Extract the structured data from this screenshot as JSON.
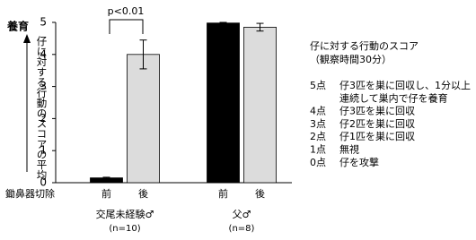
{
  "chart_data": {
    "type": "bar",
    "y_label_top": "養育",
    "y_label": "仔に対する行動のスコアの平均",
    "x_row_label": "鋤鼻器切除",
    "categories": [
      "交尾未経験♂",
      "父♂"
    ],
    "category_notes": [
      "(n=10)",
      "(n=8)"
    ],
    "series": [
      {
        "name": "前",
        "color": "#000000",
        "values": [
          0.15,
          4.98
        ],
        "errors": [
          0.02,
          0.02
        ]
      },
      {
        "name": "後",
        "color": "#dcdcdc",
        "values": [
          4.0,
          4.85
        ],
        "errors": [
          0.45,
          0.12
        ]
      }
    ],
    "ylim": [
      0,
      5
    ],
    "yticks": [
      0,
      1,
      2,
      3,
      4,
      5
    ],
    "annotation": "p<0.01",
    "score_legend": {
      "title": "仔に対する行動のスコア",
      "subtitle": "（観察時間30分）",
      "items": [
        {
          "score": "5点",
          "lines": [
            "仔3匹を巣に回収し、1分以上",
            "連続して巣内で仔を養育"
          ]
        },
        {
          "score": "4点",
          "lines": [
            "仔3匹を巣に回収"
          ]
        },
        {
          "score": "3点",
          "lines": [
            "仔2匹を巣に回収"
          ]
        },
        {
          "score": "2点",
          "lines": [
            "仔1匹を巣に回収"
          ]
        },
        {
          "score": "1点",
          "lines": [
            "無視"
          ]
        },
        {
          "score": "0点",
          "lines": [
            "仔を攻撃"
          ]
        }
      ]
    }
  }
}
